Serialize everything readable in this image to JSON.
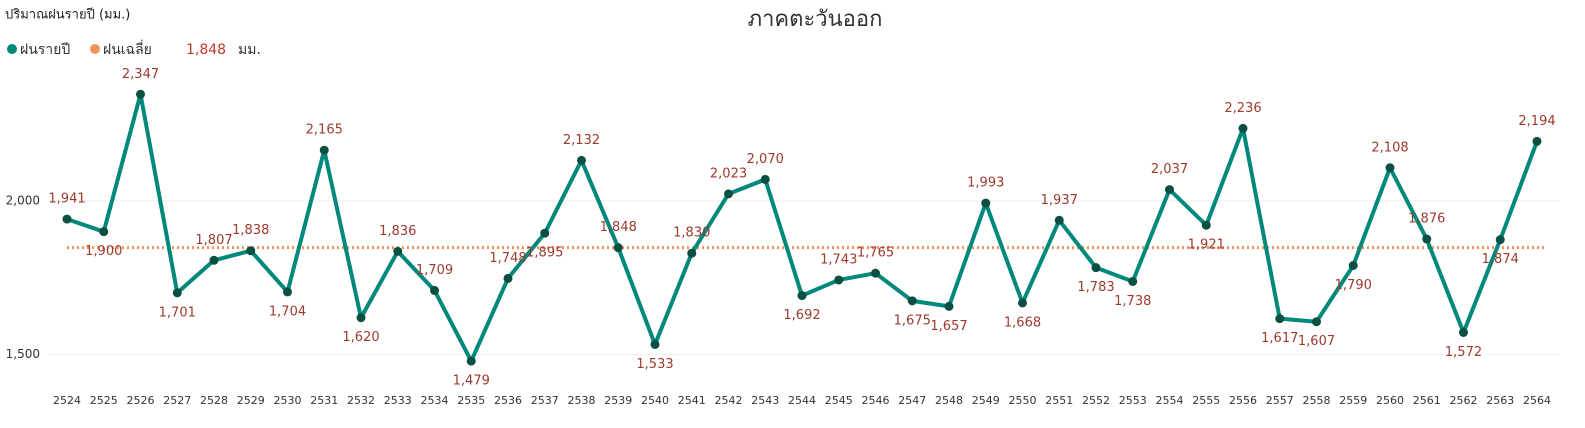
{
  "chart_data": {
    "type": "line",
    "title": "ภาคตะวันออก",
    "y_label": "ปริมาณฝนรายปี (มม.)",
    "categories": [
      "2524",
      "2525",
      "2526",
      "2527",
      "2528",
      "2529",
      "2530",
      "2531",
      "2532",
      "2533",
      "2534",
      "2535",
      "2536",
      "2537",
      "2538",
      "2539",
      "2540",
      "2541",
      "2542",
      "2543",
      "2544",
      "2545",
      "2546",
      "2547",
      "2548",
      "2549",
      "2550",
      "2551",
      "2552",
      "2553",
      "2554",
      "2555",
      "2556",
      "2557",
      "2558",
      "2559",
      "2560",
      "2561",
      "2562",
      "2563",
      "2564"
    ],
    "series": [
      {
        "name": "ฝนรายปี",
        "color": "#00897b",
        "values": [
          1941,
          1900,
          2347,
          1701,
          1807,
          1838,
          1704,
          2165,
          1620,
          1836,
          1709,
          1479,
          1748,
          1895,
          2132,
          1848,
          1533,
          1830,
          2023,
          2070,
          1692,
          1743,
          1765,
          1675,
          1657,
          1993,
          1668,
          1937,
          1783,
          1738,
          2037,
          1921,
          2236,
          1617,
          1607,
          1790,
          2108,
          1876,
          1572,
          1874,
          2194
        ],
        "value_labels": [
          "1,941",
          "1,900",
          "2,347",
          "1,701",
          "1,807",
          "1,838",
          "1,704",
          "2,165",
          "1,620",
          "1,836",
          "1,709",
          "1,479",
          "1,748",
          "1,895",
          "2,132",
          "1,848",
          "1,533",
          "1,830",
          "2,023",
          "2,070",
          "1,692",
          "1,743",
          "1,765",
          "1,675",
          "1,657",
          "1,993",
          "1,668",
          "1,937",
          "1,783",
          "1,738",
          "2,037",
          "1,921",
          "2,236",
          "1,617",
          "1,607",
          "1,790",
          "2,108",
          "1,876",
          "1,572",
          "1,874",
          "2,194"
        ]
      }
    ],
    "average": {
      "name": "ฝนเฉลี่ย",
      "color": "#f4915a",
      "value": 1848,
      "value_label": "1,848",
      "unit": "มม."
    },
    "ylim": [
      1450,
      2400
    ],
    "yticks": [
      {
        "value": 1500,
        "label": "1,500"
      },
      {
        "value": 2000,
        "label": "2,000"
      }
    ],
    "grid": true
  }
}
